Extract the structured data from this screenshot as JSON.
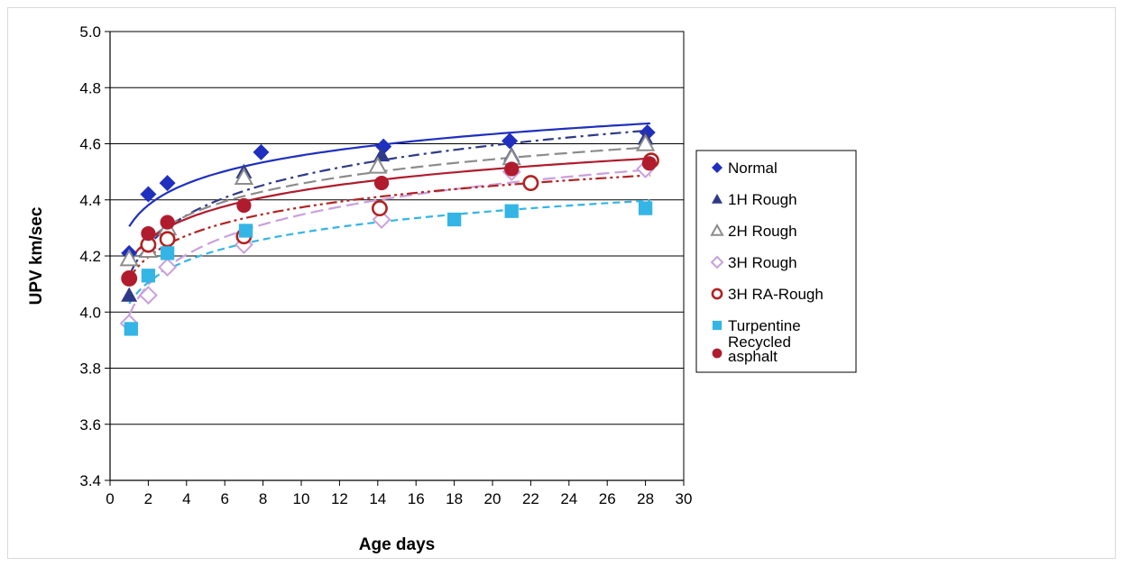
{
  "chart_data": {
    "type": "scatter",
    "title": "",
    "xlabel": "Age days",
    "ylabel": "UPV km/sec",
    "xlim": [
      0,
      30
    ],
    "ylim": [
      3.4,
      5.0
    ],
    "xticks": [
      0,
      2,
      4,
      6,
      8,
      10,
      12,
      14,
      16,
      18,
      20,
      22,
      24,
      26,
      28,
      30
    ],
    "yticks": [
      3.4,
      3.6,
      3.8,
      4.0,
      4.2,
      4.4,
      4.6,
      4.8,
      5.0
    ],
    "ytick_labels": [
      "3.4",
      "3.6",
      "3.8",
      "4.0",
      "4.2",
      "4.4",
      "4.6",
      "4.8",
      "5.0"
    ],
    "grid": "horizontal",
    "legend_position": "right",
    "trendlines": "logarithmic",
    "series": [
      {
        "name": "Normal",
        "marker": "diamond",
        "color": "#1f2fbf",
        "dash": "solid",
        "x": [
          1,
          2,
          3,
          7.9,
          14.3,
          20.9,
          28.1
        ],
        "y": [
          4.21,
          4.42,
          4.46,
          4.57,
          4.59,
          4.61,
          4.64
        ],
        "trend": {
          "a": 4.305,
          "b": 0.11
        }
      },
      {
        "name": "1H Rough",
        "marker": "triangle",
        "color": "#2e3a87",
        "dash": "dashdot",
        "x": [
          1,
          2,
          3,
          7,
          14.2,
          21,
          28
        ],
        "y": [
          4.06,
          4.25,
          4.28,
          4.5,
          4.56,
          4.56,
          4.62
        ],
        "trend": {
          "a": 4.13,
          "b": 0.155
        }
      },
      {
        "name": "2H Rough",
        "marker": "triangle-open",
        "color": "#8c8c8c",
        "dash": "longdash",
        "x": [
          1,
          2,
          3,
          7,
          14,
          21,
          28
        ],
        "y": [
          4.19,
          4.22,
          4.3,
          4.48,
          4.52,
          4.55,
          4.6
        ],
        "trend": {
          "a": 4.17,
          "b": 0.125
        }
      },
      {
        "name": "3H Rough",
        "marker": "diamond-open",
        "color": "#c9a0dc",
        "dash": "longdash",
        "x": [
          1,
          2,
          3,
          7,
          14.2,
          21,
          28
        ],
        "y": [
          3.96,
          4.06,
          4.16,
          4.24,
          4.33,
          4.5,
          4.51
        ],
        "trend": {
          "a": 3.99,
          "b": 0.155
        }
      },
      {
        "name": "3H RA-Rough",
        "marker": "circle-open",
        "color": "#b22222",
        "dash": "dashdotdot",
        "x": [
          1,
          2,
          3,
          7,
          14.1,
          22,
          28.3
        ],
        "y": [
          4.12,
          4.24,
          4.26,
          4.27,
          4.37,
          4.46,
          4.54
        ],
        "trend": {
          "a": 4.12,
          "b": 0.11
        }
      },
      {
        "name": "Turpentine",
        "marker": "square",
        "color": "#33b5e5",
        "dash": "dashed",
        "x": [
          1.1,
          2,
          3,
          7.1,
          18,
          21,
          28
        ],
        "y": [
          3.94,
          4.13,
          4.21,
          4.29,
          4.33,
          4.36,
          4.37
        ],
        "trend": {
          "a": 4.03,
          "b": 0.11
        }
      },
      {
        "name": "Recycled asphalt",
        "legend_lines": [
          "Recycled",
          "asphalt"
        ],
        "marker": "circle",
        "color": "#b01c2e",
        "dash": "solid",
        "x": [
          1,
          2,
          3,
          7,
          14.2,
          21,
          28.2
        ],
        "y": [
          4.12,
          4.28,
          4.32,
          4.38,
          4.46,
          4.51,
          4.53
        ],
        "trend": {
          "a": 4.18,
          "b": 0.11
        }
      }
    ]
  }
}
